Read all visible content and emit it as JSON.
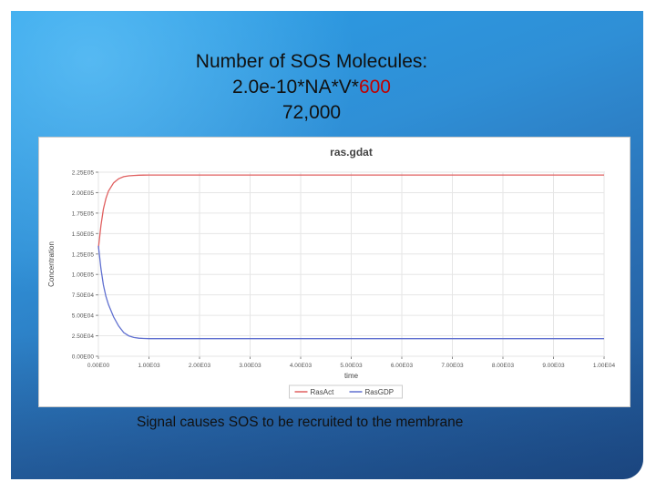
{
  "slide": {
    "title_line1": "Number of SOS Molecules:",
    "title_line2_prefix": "2.0e-10*NA*V*",
    "title_line2_highlight": "600",
    "title_line3": "72,000",
    "caption": "Signal causes SOS to be recruited to the membrane",
    "highlight_color": "#c00000"
  },
  "chart_data": {
    "type": "line",
    "title": "ras.gdat",
    "xlabel": "time",
    "ylabel": "Concentration",
    "xlim": [
      0,
      10000
    ],
    "ylim": [
      0,
      225000
    ],
    "x_ticks": [
      0,
      1000,
      2000,
      3000,
      4000,
      5000,
      6000,
      7000,
      8000,
      9000,
      10000
    ],
    "x_tick_labels": [
      "0.00E00",
      "1.00E03",
      "2.00E03",
      "3.00E03",
      "4.00E03",
      "5.00E03",
      "6.00E03",
      "7.00E03",
      "8.00E03",
      "9.00E03",
      "1.00E04"
    ],
    "y_ticks": [
      0,
      25000,
      50000,
      75000,
      100000,
      125000,
      150000,
      175000,
      200000,
      225000
    ],
    "y_tick_labels": [
      "0.00E00",
      "2.50E04",
      "5.00E04",
      "7.50E04",
      "1.00E05",
      "1.25E05",
      "1.50E05",
      "1.75E05",
      "2.00E05",
      "2.25E05"
    ],
    "grid": true,
    "legend_position": "bottom",
    "series": [
      {
        "name": "RasAct",
        "color": "#e06060",
        "x": [
          0,
          50,
          100,
          150,
          200,
          300,
          400,
          500,
          600,
          700,
          800,
          900,
          1000,
          1500,
          2000,
          3000,
          4000,
          5000,
          6000,
          7000,
          8000,
          9000,
          10000
        ],
        "values": [
          132000,
          160000,
          180000,
          193000,
          202000,
          212000,
          217000,
          219500,
          220500,
          221000,
          221300,
          221400,
          221500,
          221500,
          221500,
          221500,
          221500,
          221500,
          221500,
          221500,
          221500,
          221500,
          221500
        ]
      },
      {
        "name": "RasGDP",
        "color": "#6070d0",
        "x": [
          0,
          50,
          100,
          150,
          200,
          300,
          400,
          500,
          600,
          700,
          800,
          900,
          1000,
          1500,
          2000,
          3000,
          4000,
          5000,
          6000,
          7000,
          8000,
          9000,
          10000
        ],
        "values": [
          135000,
          107000,
          87000,
          73000,
          63000,
          48000,
          37000,
          29000,
          25000,
          23000,
          22000,
          21700,
          21500,
          21500,
          21500,
          21500,
          21500,
          21500,
          21500,
          21500,
          21500,
          21500,
          21500
        ]
      }
    ]
  }
}
